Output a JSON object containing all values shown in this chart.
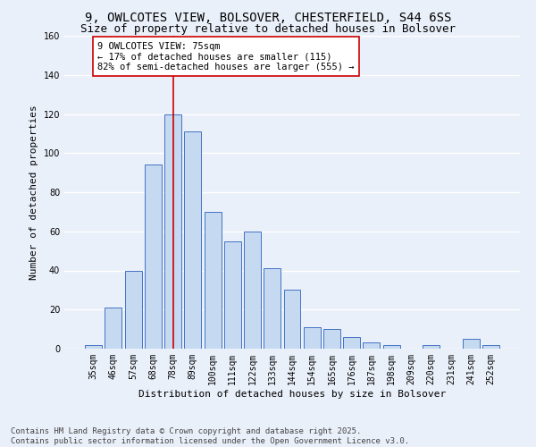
{
  "title_line1": "9, OWLCOTES VIEW, BOLSOVER, CHESTERFIELD, S44 6SS",
  "title_line2": "Size of property relative to detached houses in Bolsover",
  "xlabel": "Distribution of detached houses by size in Bolsover",
  "ylabel": "Number of detached properties",
  "bar_color": "#c5d9f0",
  "bar_edge_color": "#4472c4",
  "background_color": "#eaf0fa",
  "fig_background_color": "#eaf0fa",
  "grid_color": "#ffffff",
  "categories": [
    "35sqm",
    "46sqm",
    "57sqm",
    "68sqm",
    "78sqm",
    "89sqm",
    "100sqm",
    "111sqm",
    "122sqm",
    "133sqm",
    "144sqm",
    "154sqm",
    "165sqm",
    "176sqm",
    "187sqm",
    "198sqm",
    "209sqm",
    "220sqm",
    "231sqm",
    "241sqm",
    "252sqm"
  ],
  "values": [
    2,
    21,
    40,
    94,
    120,
    111,
    70,
    55,
    60,
    41,
    30,
    11,
    10,
    6,
    3,
    2,
    0,
    2,
    0,
    5,
    2
  ],
  "vline_x": 4,
  "vline_color": "#cc0000",
  "annotation_text": "9 OWLCOTES VIEW: 75sqm\n← 17% of detached houses are smaller (115)\n82% of semi-detached houses are larger (555) →",
  "annotation_box_color": "#ffffff",
  "annotation_box_edge": "#cc0000",
  "ylim": [
    0,
    160
  ],
  "yticks": [
    0,
    20,
    40,
    60,
    80,
    100,
    120,
    140,
    160
  ],
  "footer_line1": "Contains HM Land Registry data © Crown copyright and database right 2025.",
  "footer_line2": "Contains public sector information licensed under the Open Government Licence v3.0.",
  "title_fontsize": 10,
  "subtitle_fontsize": 9,
  "axis_label_fontsize": 8,
  "tick_fontsize": 7,
  "annotation_fontsize": 7.5,
  "footer_fontsize": 6.5
}
